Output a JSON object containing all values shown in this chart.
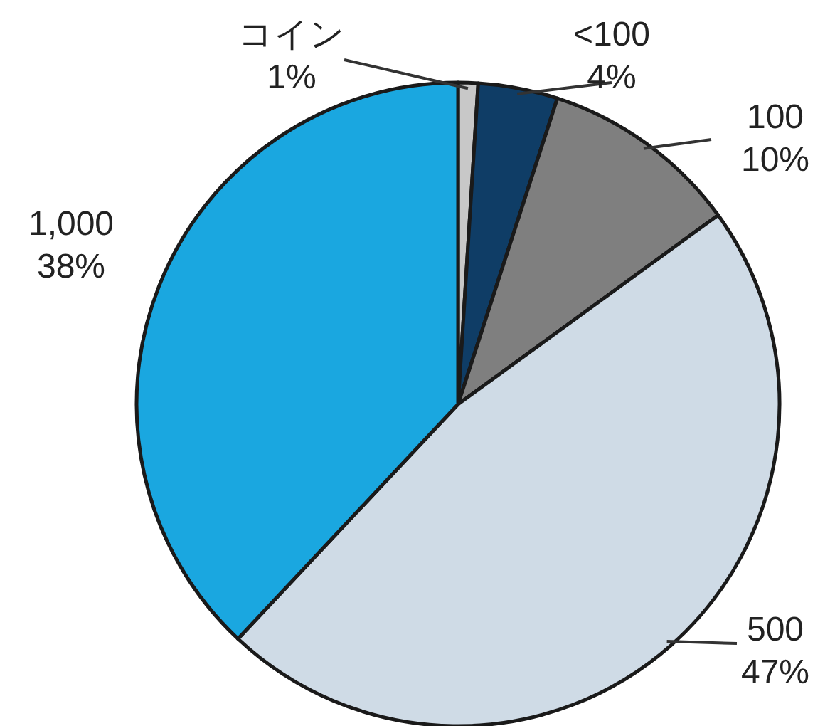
{
  "chart_data": {
    "type": "pie",
    "categories": [
      "コイン",
      "<100",
      "100",
      "500",
      "1,000"
    ],
    "values": [
      1,
      4,
      10,
      47,
      38
    ],
    "value_labels": [
      "1%",
      "4%",
      "10%",
      "47%",
      "38%"
    ],
    "colors": [
      "#c8c8c8",
      "#0f3d66",
      "#7f7f7f",
      "#cfdbe6",
      "#1aa7e0"
    ]
  }
}
